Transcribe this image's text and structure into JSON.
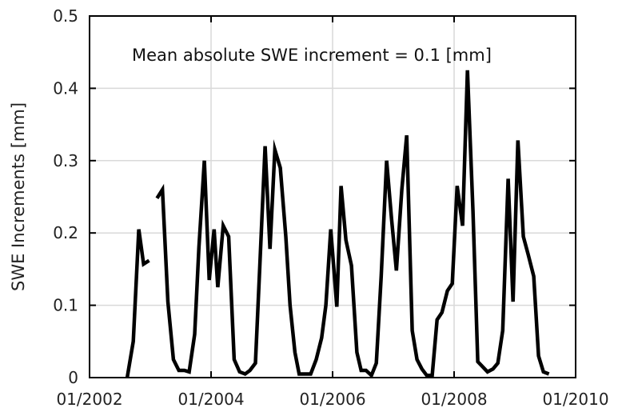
{
  "chart_data": {
    "type": "line",
    "title": "",
    "xlabel": "",
    "ylabel": "SWE Increments [mm]",
    "annotation": "Mean absolute SWE increment = 0.1 [mm]",
    "xlim": [
      2002.0,
      2010.0
    ],
    "ylim": [
      0,
      0.5
    ],
    "x_ticks": [
      {
        "value": 2002.0,
        "label": "01/2002"
      },
      {
        "value": 2004.0,
        "label": "01/2004"
      },
      {
        "value": 2006.0,
        "label": "01/2006"
      },
      {
        "value": 2008.0,
        "label": "01/2008"
      },
      {
        "value": 2010.0,
        "label": "01/2010"
      }
    ],
    "y_ticks": [
      {
        "value": 0,
        "label": "0"
      },
      {
        "value": 0.1,
        "label": "0.1"
      },
      {
        "value": 0.2,
        "label": "0.2"
      },
      {
        "value": 0.3,
        "label": "0.3"
      },
      {
        "value": 0.4,
        "label": "0.4"
      },
      {
        "value": 0.5,
        "label": "0.5"
      }
    ],
    "grid": true,
    "colors": {
      "line": "#000000",
      "grid": "#d9d9d9",
      "axis": "#000000"
    },
    "series": [
      {
        "segments": [
          [
            [
              2002.62,
              0.0
            ],
            [
              2002.72,
              0.05
            ],
            [
              2002.81,
              0.205
            ],
            [
              2002.89,
              0.157
            ],
            [
              2002.98,
              0.162
            ]
          ],
          [
            [
              2003.11,
              0.248
            ],
            [
              2003.2,
              0.26
            ],
            [
              2003.29,
              0.105
            ],
            [
              2003.38,
              0.025
            ],
            [
              2003.47,
              0.01
            ],
            [
              2003.56,
              0.01
            ],
            [
              2003.64,
              0.008
            ],
            [
              2003.73,
              0.06
            ],
            [
              2003.8,
              0.18
            ],
            [
              2003.89,
              0.3
            ],
            [
              2003.97,
              0.135
            ],
            [
              2004.05,
              0.205
            ],
            [
              2004.11,
              0.125
            ],
            [
              2004.2,
              0.21
            ],
            [
              2004.29,
              0.195
            ],
            [
              2004.38,
              0.025
            ],
            [
              2004.47,
              0.008
            ],
            [
              2004.56,
              0.005
            ],
            [
              2004.64,
              0.01
            ],
            [
              2004.73,
              0.02
            ],
            [
              2004.8,
              0.15
            ],
            [
              2004.89,
              0.32
            ],
            [
              2004.97,
              0.178
            ],
            [
              2005.05,
              0.315
            ],
            [
              2005.14,
              0.29
            ],
            [
              2005.23,
              0.195
            ],
            [
              2005.3,
              0.1
            ],
            [
              2005.38,
              0.035
            ],
            [
              2005.45,
              0.005
            ],
            [
              2005.55,
              0.005
            ],
            [
              2005.64,
              0.005
            ],
            [
              2005.73,
              0.025
            ],
            [
              2005.82,
              0.055
            ],
            [
              2005.89,
              0.1
            ],
            [
              2005.97,
              0.205
            ],
            [
              2006.07,
              0.098
            ],
            [
              2006.14,
              0.265
            ],
            [
              2006.22,
              0.19
            ],
            [
              2006.31,
              0.155
            ],
            [
              2006.4,
              0.035
            ],
            [
              2006.47,
              0.01
            ],
            [
              2006.55,
              0.01
            ],
            [
              2006.64,
              0.003
            ],
            [
              2006.72,
              0.02
            ],
            [
              2006.8,
              0.14
            ],
            [
              2006.89,
              0.3
            ],
            [
              2006.97,
              0.22
            ],
            [
              2007.05,
              0.148
            ],
            [
              2007.14,
              0.26
            ],
            [
              2007.22,
              0.335
            ],
            [
              2007.31,
              0.065
            ],
            [
              2007.39,
              0.025
            ],
            [
              2007.47,
              0.012
            ],
            [
              2007.55,
              0.003
            ],
            [
              2007.64,
              0.003
            ],
            [
              2007.72,
              0.08
            ],
            [
              2007.8,
              0.09
            ],
            [
              2007.89,
              0.12
            ],
            [
              2007.97,
              0.13
            ],
            [
              2008.05,
              0.265
            ],
            [
              2008.14,
              0.21
            ],
            [
              2008.22,
              0.425
            ],
            [
              2008.31,
              0.23
            ],
            [
              2008.39,
              0.022
            ],
            [
              2008.47,
              0.015
            ],
            [
              2008.55,
              0.008
            ],
            [
              2008.64,
              0.012
            ],
            [
              2008.72,
              0.02
            ],
            [
              2008.8,
              0.065
            ],
            [
              2008.89,
              0.275
            ],
            [
              2008.97,
              0.105
            ],
            [
              2009.05,
              0.328
            ],
            [
              2009.14,
              0.195
            ],
            [
              2009.22,
              0.17
            ],
            [
              2009.31,
              0.14
            ],
            [
              2009.39,
              0.03
            ],
            [
              2009.47,
              0.008
            ],
            [
              2009.56,
              0.005
            ]
          ]
        ]
      }
    ]
  }
}
